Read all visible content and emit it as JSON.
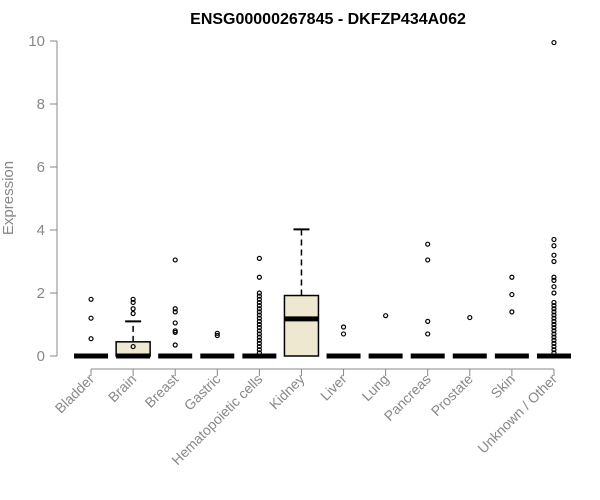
{
  "chart_data": {
    "type": "box",
    "title": "ENSG00000267845 - DKFZP434A062",
    "xlabel": "",
    "ylabel": "Expression",
    "ylim": [
      0,
      10
    ],
    "yticks": [
      0,
      2,
      4,
      6,
      8,
      10
    ],
    "grid": false,
    "legend": "none",
    "box_fill": "#efe8d0",
    "categories": [
      "Bladder",
      "Brain",
      "Breast",
      "Gastric",
      "Hematopoietic cells",
      "Kidney",
      "Liver",
      "Lung",
      "Pancreas",
      "Prostate",
      "Skin",
      "Unknown / Other"
    ],
    "boxes": [
      {
        "q1": 0,
        "median": 0,
        "q3": 0,
        "whisker_low": 0,
        "whisker_high": 0,
        "outliers": [
          0.55,
          1.2,
          1.8
        ]
      },
      {
        "q1": 0,
        "median": 0,
        "q3": 0.45,
        "whisker_low": 0,
        "whisker_high": 1.1,
        "outliers": [
          0.3,
          1.35,
          1.5,
          1.7,
          1.8
        ]
      },
      {
        "q1": 0,
        "median": 0,
        "q3": 0,
        "whisker_low": 0,
        "whisker_high": 0,
        "outliers": [
          0.35,
          0.75,
          0.8,
          1.05,
          1.4,
          1.5,
          3.05
        ]
      },
      {
        "q1": 0,
        "median": 0,
        "q3": 0,
        "whisker_low": 0,
        "whisker_high": 0,
        "outliers": [
          0.65,
          0.72
        ]
      },
      {
        "q1": 0,
        "median": 0,
        "q3": 0,
        "whisker_low": 0,
        "whisker_high": 0,
        "outliers": [
          0.1,
          0.2,
          0.3,
          0.4,
          0.5,
          0.6,
          0.7,
          0.8,
          0.9,
          1.0,
          1.1,
          1.2,
          1.3,
          1.4,
          1.5,
          1.6,
          1.7,
          1.8,
          1.9,
          2.0,
          2.5,
          3.1
        ]
      },
      {
        "q1": 0,
        "median": 1.18,
        "q3": 1.92,
        "whisker_low": 0,
        "whisker_high": 4.02,
        "outliers": []
      },
      {
        "q1": 0,
        "median": 0,
        "q3": 0,
        "whisker_low": 0,
        "whisker_high": 0,
        "outliers": [
          0.7,
          0.92
        ]
      },
      {
        "q1": 0,
        "median": 0,
        "q3": 0,
        "whisker_low": 0,
        "whisker_high": 0,
        "outliers": [
          1.28
        ]
      },
      {
        "q1": 0,
        "median": 0,
        "q3": 0,
        "whisker_low": 0,
        "whisker_high": 0,
        "outliers": [
          0.7,
          1.1,
          3.05,
          3.55
        ]
      },
      {
        "q1": 0,
        "median": 0,
        "q3": 0,
        "whisker_low": 0,
        "whisker_high": 0,
        "outliers": [
          1.22
        ]
      },
      {
        "q1": 0,
        "median": 0,
        "q3": 0,
        "whisker_low": 0,
        "whisker_high": 0,
        "outliers": [
          1.4,
          1.95,
          2.5
        ]
      },
      {
        "q1": 0,
        "median": 0,
        "q3": 0,
        "whisker_low": 0,
        "whisker_high": 0,
        "outliers": [
          0.1,
          0.2,
          0.3,
          0.4,
          0.5,
          0.6,
          0.7,
          0.8,
          0.9,
          1.0,
          1.1,
          1.2,
          1.3,
          1.4,
          1.5,
          1.6,
          1.7,
          2.0,
          2.2,
          2.4,
          2.5,
          3.0,
          3.2,
          3.5,
          3.7,
          9.95
        ]
      }
    ]
  }
}
